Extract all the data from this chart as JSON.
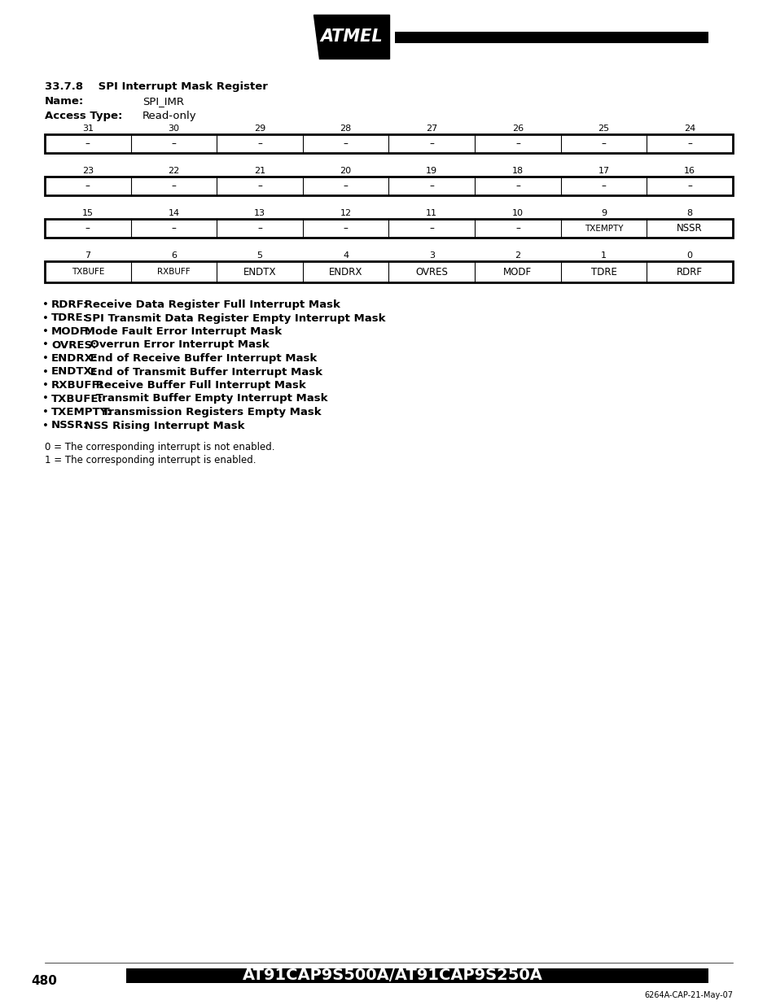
{
  "title_section": "33.7.8    SPI Interrupt Mask Register",
  "name_label": "Name:",
  "name_value": "SPI_IMR",
  "access_label": "Access Type:",
  "access_value": "Read-only",
  "rows": [
    {
      "bits": [
        "31",
        "30",
        "29",
        "28",
        "27",
        "26",
        "25",
        "24"
      ],
      "values": [
        "–",
        "–",
        "–",
        "–",
        "–",
        "–",
        "–",
        "–"
      ]
    },
    {
      "bits": [
        "23",
        "22",
        "21",
        "20",
        "19",
        "18",
        "17",
        "16"
      ],
      "values": [
        "–",
        "–",
        "–",
        "–",
        "–",
        "–",
        "–",
        "–"
      ]
    },
    {
      "bits": [
        "15",
        "14",
        "13",
        "12",
        "11",
        "10",
        "9",
        "8"
      ],
      "values": [
        "–",
        "–",
        "–",
        "–",
        "–",
        "–",
        "TXEMPTY",
        "NSSR"
      ]
    },
    {
      "bits": [
        "7",
        "6",
        "5",
        "4",
        "3",
        "2",
        "1",
        "0"
      ],
      "values": [
        "TXBUFE",
        "RXBUFF",
        "ENDTX",
        "ENDRX",
        "OVRES",
        "MODF",
        "TDRE",
        "RDRF"
      ]
    }
  ],
  "bullet_items": [
    {
      "bold": "RDRF:",
      "normal": " Receive Data Register Full Interrupt Mask"
    },
    {
      "bold": "TDRE:",
      "normal": " SPI Transmit Data Register Empty Interrupt Mask"
    },
    {
      "bold": "MODF:",
      "normal": " Mode Fault Error Interrupt Mask"
    },
    {
      "bold": "OVRES:",
      "normal": " Overrun Error Interrupt Mask"
    },
    {
      "bold": "ENDRX:",
      "normal": " End of Receive Buffer Interrupt Mask"
    },
    {
      "bold": "ENDTX:",
      "normal": " End of Transmit Buffer Interrupt Mask"
    },
    {
      "bold": "RXBUFF:",
      "normal": " Receive Buffer Full Interrupt Mask"
    },
    {
      "bold": "TXBUFE:",
      "normal": " Transmit Buffer Empty Interrupt Mask"
    },
    {
      "bold": "TXEMPTY:",
      "normal": " Transmission Registers Empty Mask"
    },
    {
      "bold": "NSSR:",
      "normal": " NSS Rising Interrupt Mask"
    }
  ],
  "note0": "0 = The corresponding interrupt is not enabled.",
  "note1": "1 = The corresponding interrupt is enabled.",
  "footer_page": "480",
  "footer_title": "AT91CAP9S500A/AT91CAP9S250A",
  "footer_ref": "6264A-CAP-21-May-07",
  "bg_color": "#ffffff"
}
